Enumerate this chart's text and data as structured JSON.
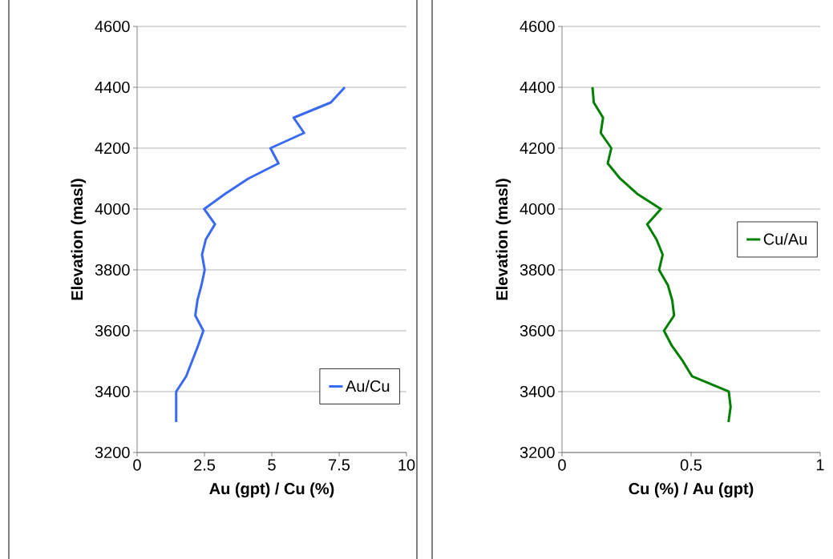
{
  "chart_data": [
    {
      "type": "line",
      "xlabel": "Au (gpt) / Cu (%)",
      "ylabel": "Elevation (masl)",
      "xlim": [
        0,
        10
      ],
      "xticks": [
        0,
        2.5,
        5,
        7.5,
        10
      ],
      "ylim": [
        3200,
        4600
      ],
      "yticks": [
        3200,
        3400,
        3600,
        3800,
        4000,
        4200,
        4400,
        4600
      ],
      "grid": "y",
      "legend": "bottom right",
      "marker": "none",
      "series": [
        {
          "name": "Au/Cu",
          "color": "#3a6af2",
          "x": [
            1.45,
            1.45,
            1.82,
            2.04,
            2.26,
            2.46,
            2.16,
            2.24,
            2.39,
            2.51,
            2.41,
            2.55,
            2.89,
            2.49,
            3.27,
            4.13,
            5.25,
            4.95,
            6.2,
            5.81,
            7.19,
            7.71
          ],
          "values": [
            3300,
            3400,
            3450,
            3500,
            3550,
            3600,
            3650,
            3700,
            3750,
            3800,
            3850,
            3900,
            3950,
            4000,
            4050,
            4100,
            4150,
            4200,
            4250,
            4300,
            4350,
            4400
          ]
        }
      ]
    },
    {
      "type": "line",
      "xlabel": "Cu (%) / Au (gpt)",
      "ylabel": "Elevation (masl)",
      "xlim": [
        0,
        1
      ],
      "xticks": [
        0,
        0.5,
        1
      ],
      "ylim": [
        3200,
        4600
      ],
      "yticks": [
        3200,
        3400,
        3600,
        3800,
        4000,
        4200,
        4400,
        4600
      ],
      "grid": "y",
      "legend": "right",
      "marker": "none",
      "series": [
        {
          "name": "Cu/Au",
          "color": "#008000",
          "x": [
            0.645,
            0.653,
            0.646,
            0.504,
            0.468,
            0.426,
            0.395,
            0.434,
            0.427,
            0.41,
            0.376,
            0.39,
            0.366,
            0.33,
            0.383,
            0.291,
            0.225,
            0.177,
            0.191,
            0.15,
            0.159,
            0.123,
            0.118
          ],
          "values": [
            3300,
            3350,
            3400,
            3450,
            3500,
            3550,
            3600,
            3650,
            3700,
            3750,
            3800,
            3850,
            3900,
            3950,
            4000,
            4050,
            4100,
            4150,
            4200,
            4250,
            4300,
            4350,
            4400
          ]
        }
      ]
    }
  ]
}
